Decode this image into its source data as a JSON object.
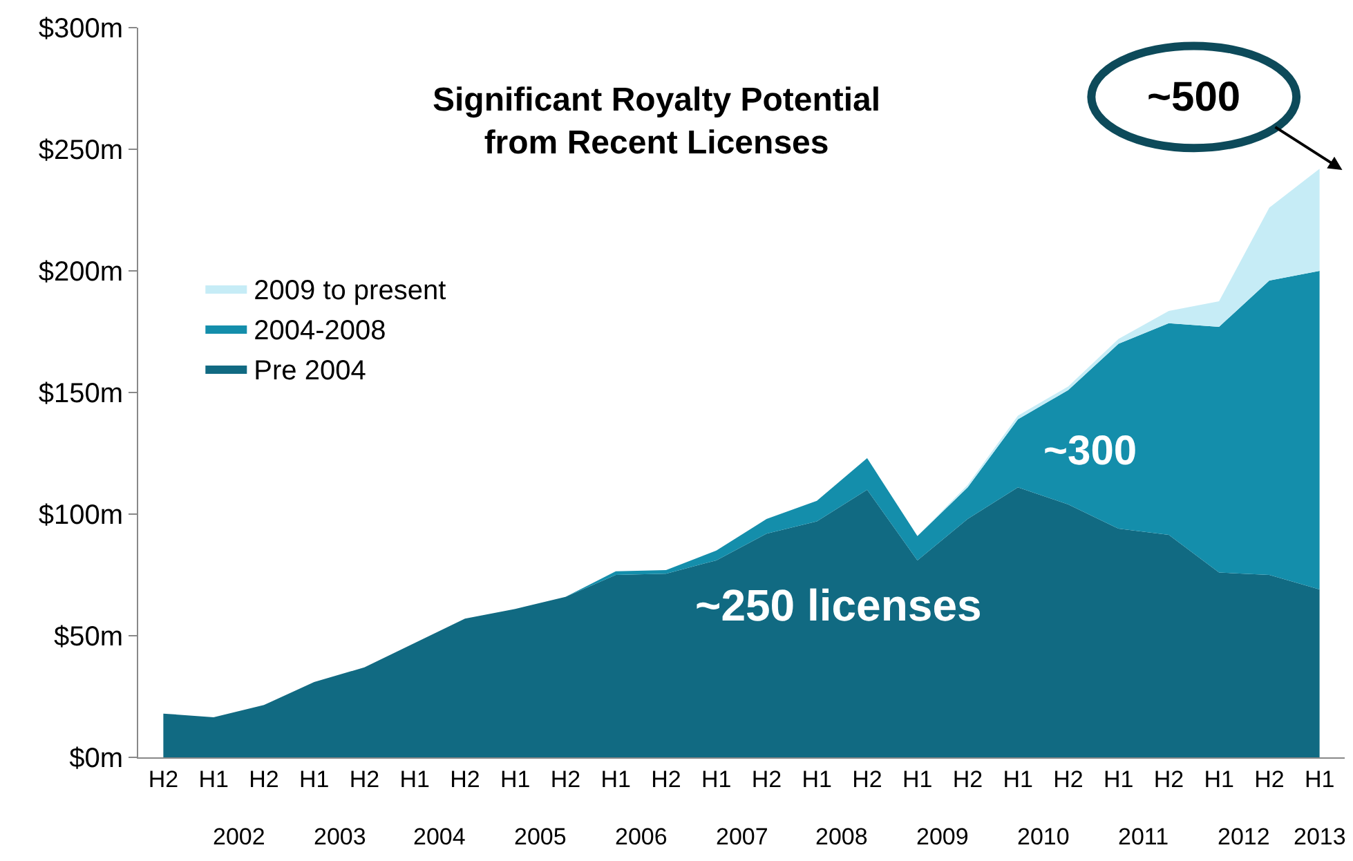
{
  "chart_data": {
    "type": "area",
    "title": "Significant Royalty Potential\nfrom Recent Licenses",
    "stacked": true,
    "legend": "top left",
    "categories": [
      "H2",
      "H1",
      "H2",
      "H1",
      "H2",
      "H1",
      "H2",
      "H1",
      "H2",
      "H1",
      "H2",
      "H1",
      "H2",
      "H1",
      "H2",
      "H1",
      "H2",
      "H1",
      "H2",
      "H1",
      "H2",
      "H1",
      "H2",
      "H1"
    ],
    "series": [
      {
        "name": "Pre 2004",
        "color": "#116a82",
        "values": [
          18,
          16.5,
          21.5,
          31,
          37,
          47,
          57,
          61,
          66,
          75,
          75.5,
          81,
          92,
          97,
          110,
          81,
          98,
          111,
          104,
          94,
          91.5,
          76,
          75,
          69
        ]
      },
      {
        "name": "2004-2008",
        "color": "#148eab",
        "values": [
          0,
          0,
          0,
          0,
          0,
          0,
          0,
          0,
          0,
          1.5,
          1.5,
          4,
          6,
          8.5,
          13,
          10,
          13,
          28,
          47,
          76,
          87,
          101,
          121,
          131
        ]
      },
      {
        "name": "2009 to present",
        "color": "#c6ecf6",
        "values": [
          0,
          0,
          0,
          0,
          0,
          0,
          0,
          0,
          0,
          0,
          0,
          0,
          0,
          0,
          0,
          0,
          1,
          1.5,
          1.5,
          2,
          5,
          10.5,
          30,
          42
        ]
      }
    ],
    "ylim": [
      0,
      300
    ],
    "yticks": [
      {
        "value": 0,
        "label": "$0m"
      },
      {
        "value": 50,
        "label": "$50m"
      },
      {
        "value": 100,
        "label": "$100m"
      },
      {
        "value": 150,
        "label": "$150m"
      },
      {
        "value": 200,
        "label": "$200m"
      },
      {
        "value": 250,
        "label": "$250m"
      },
      {
        "value": 300,
        "label": "$300m"
      }
    ],
    "annotations": [
      "~500",
      "~300",
      "~250 licenses",
      "2002",
      "2003",
      "2004",
      "2005",
      "2006",
      "2007",
      "2008",
      "2009",
      "2010",
      "2011",
      "2012",
      "2013"
    ]
  }
}
